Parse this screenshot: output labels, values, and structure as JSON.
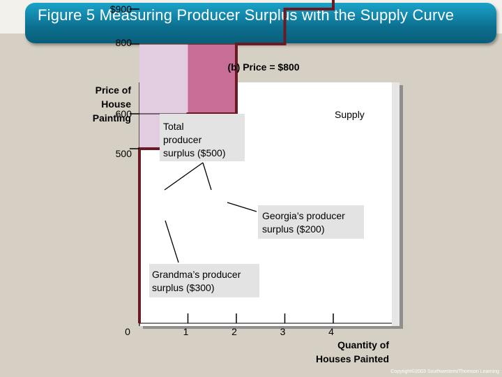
{
  "slide": {
    "title": "Figure 5 Measuring Producer Surplus with the Supply Curve",
    "footer": "Copyright©2003 Southwestern/Thomson Learning"
  },
  "colors": {
    "background": "#d6d0c4",
    "title_bar": "#0c6f8f",
    "supply_line": "#6b1a24",
    "grandma_surplus": "#e2cce0",
    "georgia_surplus": "#c76d96",
    "callout_box": "#e3e3e3"
  },
  "chart_data": {
    "type": "line",
    "panel_title": "(b) Price = $800",
    "ylabel": [
      "Price of",
      "House",
      "Painting"
    ],
    "xlabel": [
      "Quantity of",
      "Houses Painted"
    ],
    "x_ticks": [
      "1",
      "2",
      "3",
      "4"
    ],
    "x_tick_values": [
      1,
      2,
      3,
      4
    ],
    "y_tick_labels": [
      "$900",
      "800",
      "600",
      "500"
    ],
    "y_tick_values": [
      900,
      800,
      600,
      500
    ],
    "origin_label": "0",
    "xlim": [
      0,
      5.3
    ],
    "ylim": [
      0,
      1200
    ],
    "supply_label": "Supply",
    "series": [
      {
        "name": "Supply",
        "x": [
          0,
          0,
          1,
          1,
          2,
          2,
          3,
          3,
          4,
          4
        ],
        "y": [
          0,
          500,
          500,
          600,
          600,
          800,
          800,
          900,
          900,
          1200
        ]
      }
    ],
    "price_line": 800,
    "surplus_areas": [
      {
        "owner": "Grandma",
        "x": [
          0,
          1
        ],
        "y": [
          500,
          800
        ],
        "value": 300
      },
      {
        "owner": "Georgia",
        "x": [
          1,
          2
        ],
        "y": [
          600,
          800
        ],
        "value": 200
      }
    ],
    "annotations": {
      "total": [
        "Total",
        "producer",
        "surplus ($500)"
      ],
      "georgia": [
        "Georgia’s producer",
        "surplus ($200)"
      ],
      "grandma": [
        "Grandma’s producer",
        "surplus ($300)"
      ]
    }
  }
}
